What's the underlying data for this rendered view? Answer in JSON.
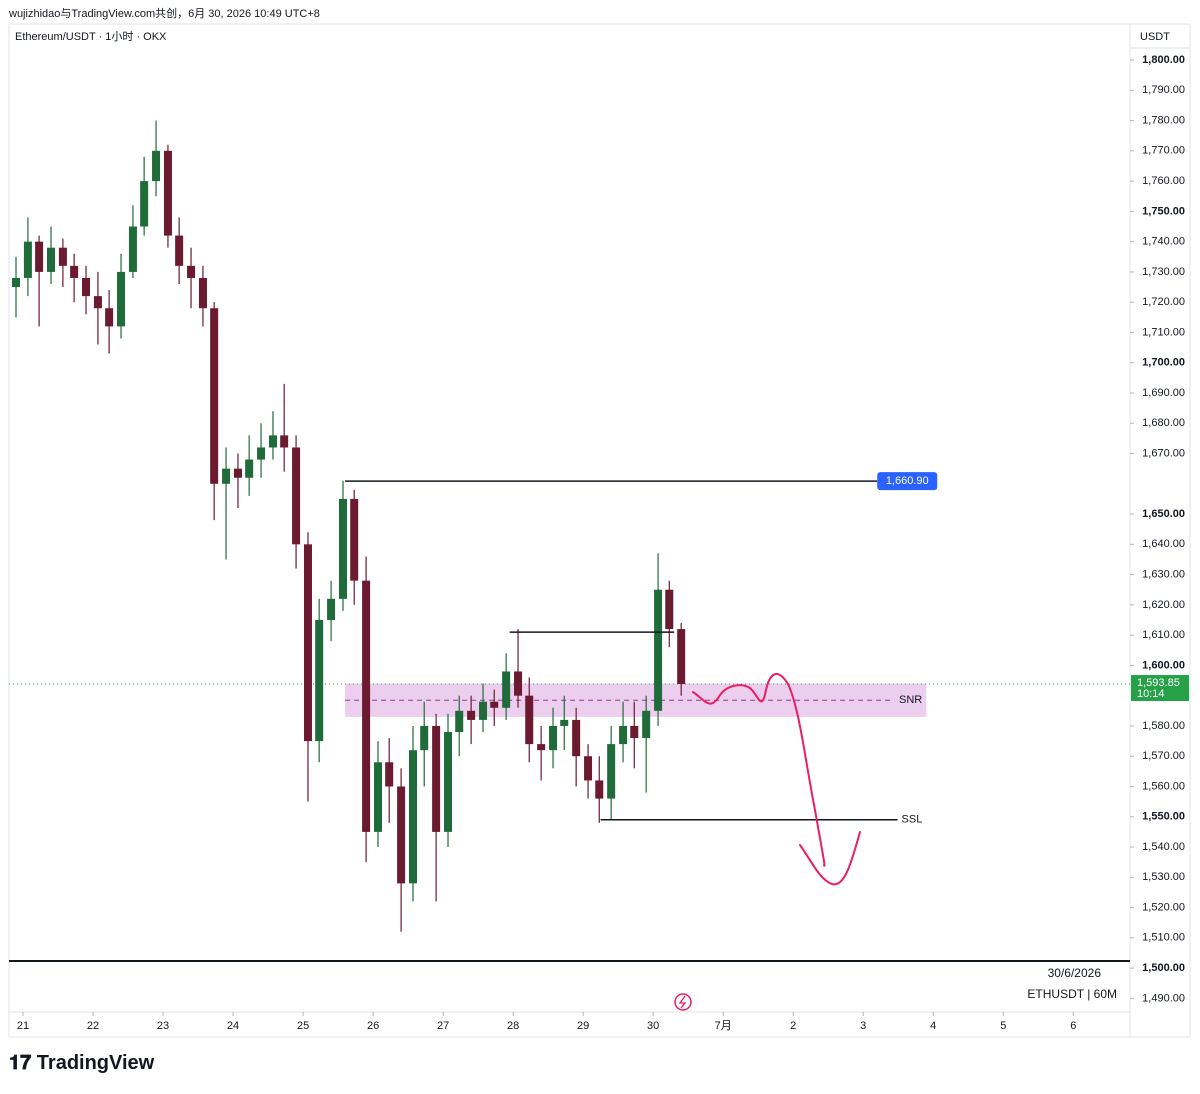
{
  "header": "wujizhidao与TradingView.com共创，6月 30, 2026 10:49 UTC+8",
  "brand": "TradingView",
  "chart_data": {
    "type": "candlestick",
    "title": "Ethereum/USDT · 1小时 · OKX",
    "currency": "USDT",
    "watermark": [
      "30/6/2026",
      "ETHUSDT | 60M"
    ],
    "up_color": "#1f6b3a",
    "down_color": "#6b1a30",
    "xlim": [
      20.8,
      36.81
    ],
    "xticks": [
      21,
      22,
      23,
      24,
      25,
      26,
      27,
      28,
      29,
      30,
      {
        "value": 31,
        "label": "7月"
      },
      {
        "value": 32,
        "label": "2"
      },
      {
        "value": 33,
        "label": "3"
      },
      {
        "value": 34,
        "label": "4"
      },
      {
        "value": 35,
        "label": "5"
      },
      {
        "value": 36,
        "label": "6"
      }
    ],
    "ylim": [
      1485.5,
      1811.9
    ],
    "yticks": [
      {
        "value": 1490,
        "label": "1,490.00"
      },
      {
        "value": 1500,
        "label": "1,500.00"
      },
      {
        "value": 1510,
        "label": "1,510.00"
      },
      {
        "value": 1520,
        "label": "1,520.00"
      },
      {
        "value": 1530,
        "label": "1,530.00"
      },
      {
        "value": 1540,
        "label": "1,540.00"
      },
      {
        "value": 1550,
        "label": "1,550.00"
      },
      {
        "value": 1560,
        "label": "1,560.00"
      },
      {
        "value": 1570,
        "label": "1,570.00"
      },
      {
        "value": 1580,
        "label": "1,580.00"
      },
      {
        "value": 1600,
        "label": "1,600.00"
      },
      {
        "value": 1610,
        "label": "1,610.00"
      },
      {
        "value": 1620,
        "label": "1,620.00"
      },
      {
        "value": 1630,
        "label": "1,630.00"
      },
      {
        "value": 1640,
        "label": "1,640.00"
      },
      {
        "value": 1650,
        "label": "1,650.00"
      },
      {
        "value": 1670,
        "label": "1,670.00"
      },
      {
        "value": 1680,
        "label": "1,680.00"
      },
      {
        "value": 1690,
        "label": "1,690.00"
      },
      {
        "value": 1700,
        "label": "1,700.00"
      },
      {
        "value": 1710,
        "label": "1,710.00"
      },
      {
        "value": 1720,
        "label": "1,720.00"
      },
      {
        "value": 1730,
        "label": "1,730.00"
      },
      {
        "value": 1740,
        "label": "1,740.00"
      },
      {
        "value": 1750,
        "label": "1,750.00"
      },
      {
        "value": 1760,
        "label": "1,760.00"
      },
      {
        "value": 1770,
        "label": "1,770.00"
      },
      {
        "value": 1780,
        "label": "1,780.00"
      },
      {
        "value": 1790,
        "label": "1,790.00"
      },
      {
        "value": 1800,
        "label": "1,800.00"
      }
    ],
    "x": [
      20.9,
      21.07,
      21.23,
      21.4,
      21.57,
      21.73,
      21.9,
      22.07,
      22.23,
      22.4,
      22.57,
      22.73,
      22.9,
      23.07,
      23.23,
      23.4,
      23.57,
      23.73,
      23.9,
      24.07,
      24.23,
      24.4,
      24.57,
      24.73,
      24.9,
      25.07,
      25.23,
      25.4,
      25.57,
      25.73,
      25.9,
      26.07,
      26.23,
      26.4,
      26.57,
      26.73,
      26.9,
      27.07,
      27.23,
      27.4,
      27.57,
      27.73,
      27.9,
      28.07,
      28.23,
      28.4,
      28.57,
      28.73,
      28.9,
      29.07,
      29.23,
      29.4,
      29.57,
      29.73,
      29.9,
      30.07,
      30.23,
      30.4
    ],
    "open": [
      1725,
      1728,
      1740,
      1730,
      1738,
      1732,
      1728,
      1722,
      1718,
      1712,
      1730,
      1745,
      1760,
      1770,
      1742,
      1732,
      1728,
      1718,
      1660,
      1665,
      1662,
      1668,
      1672,
      1676,
      1672,
      1640,
      1575,
      1615,
      1622,
      1655,
      1628,
      1545,
      1568,
      1560,
      1528,
      1572,
      1580,
      1545,
      1578,
      1585,
      1582,
      1588,
      1586,
      1598,
      1590,
      1574,
      1572,
      1580,
      1582,
      1570,
      1562,
      1556,
      1574,
      1580,
      1576,
      1585,
      1625,
      1612
    ],
    "high": [
      1735,
      1748,
      1742,
      1745,
      1741,
      1736,
      1732,
      1730,
      1724,
      1736,
      1752,
      1768,
      1780,
      1772,
      1748,
      1738,
      1732,
      1720,
      1672,
      1670,
      1676,
      1680,
      1684,
      1693,
      1676,
      1644,
      1622,
      1628,
      1661,
      1658,
      1636,
      1575,
      1576,
      1566,
      1580,
      1588,
      1584,
      1584,
      1590,
      1590,
      1594,
      1592,
      1604,
      1612,
      1596,
      1580,
      1586,
      1590,
      1586,
      1574,
      1570,
      1580,
      1588,
      1588,
      1590,
      1637,
      1628,
      1614
    ],
    "low": [
      1715,
      1722,
      1712,
      1726,
      1725,
      1720,
      1716,
      1706,
      1703,
      1708,
      1728,
      1742,
      1755,
      1738,
      1726,
      1718,
      1712,
      1648,
      1635,
      1652,
      1656,
      1662,
      1668,
      1664,
      1632,
      1555,
      1568,
      1608,
      1618,
      1620,
      1535,
      1540,
      1548,
      1512,
      1522,
      1560,
      1522,
      1540,
      1570,
      1574,
      1578,
      1580,
      1582,
      1586,
      1568,
      1562,
      1566,
      1572,
      1560,
      1556,
      1548,
      1549,
      1568,
      1566,
      1558,
      1580,
      1606,
      1590
    ],
    "close": [
      1728,
      1740,
      1730,
      1738,
      1732,
      1728,
      1722,
      1718,
      1712,
      1730,
      1745,
      1760,
      1770,
      1742,
      1732,
      1728,
      1718,
      1660,
      1665,
      1662,
      1668,
      1672,
      1676,
      1672,
      1640,
      1575,
      1615,
      1622,
      1655,
      1628,
      1545,
      1568,
      1560,
      1528,
      1572,
      1580,
      1545,
      1578,
      1585,
      1582,
      1588,
      1586,
      1598,
      1590,
      1574,
      1572,
      1580,
      1582,
      1570,
      1562,
      1556,
      1574,
      1580,
      1576,
      1585,
      1625,
      1612,
      1593.85
    ],
    "last_price": {
      "value": 1593.85,
      "label": "1,593.85",
      "countdown": "10:14",
      "color": "#26a148"
    },
    "levels": [
      {
        "y": 1660.9,
        "x": [
          25.6,
          33.2
        ],
        "label": "1,660.90"
      },
      {
        "y": 1611,
        "x": [
          27.95,
          30.3
        ]
      },
      {
        "y": 1549,
        "x": [
          29.25,
          33.49
        ],
        "label": "SSL"
      }
    ],
    "zone": {
      "y": [
        1583,
        1594
      ],
      "mid": 1588.5,
      "x": [
        25.6,
        33.9
      ],
      "label": "SNR",
      "color": "#e9c6ec"
    }
  }
}
